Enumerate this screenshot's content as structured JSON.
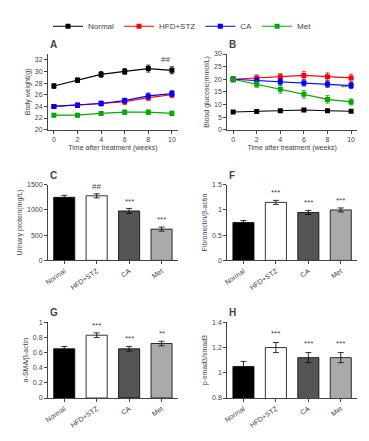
{
  "chart_data": [
    {
      "type": "line",
      "title": "A",
      "xlabel": "Time after treatment (weeks)",
      "ylabel": "Body weight(g)",
      "x": [
        0,
        2,
        4,
        6,
        8,
        10
      ],
      "xlim": [
        -0.5,
        10.5
      ],
      "xticks": [
        0,
        2,
        4,
        6,
        8,
        10
      ],
      "ylim": [
        20,
        33
      ],
      "yticks": [
        20,
        22,
        24,
        26,
        28,
        30,
        32
      ],
      "grid": false,
      "series": [
        {
          "name": "Normal",
          "color": "#000000",
          "marker": "square",
          "values": [
            27.5,
            28.5,
            29.5,
            30.0,
            30.5,
            30.2
          ],
          "errors": [
            0.4,
            0.4,
            0.5,
            0.5,
            0.6,
            0.6
          ]
        },
        {
          "name": "HFD+STZ",
          "color": "#FF0000",
          "marker": "square",
          "values": [
            24.0,
            24.2,
            24.5,
            24.8,
            25.5,
            26.0
          ],
          "errors": [
            0.3,
            0.4,
            0.4,
            0.5,
            0.5,
            0.5
          ]
        },
        {
          "name": "CA",
          "color": "#0000FF",
          "marker": "square",
          "values": [
            24.0,
            24.2,
            24.5,
            25.0,
            25.8,
            26.2
          ],
          "errors": [
            0.3,
            0.3,
            0.4,
            0.4,
            0.5,
            0.5
          ]
        },
        {
          "name": "Met",
          "color": "#00AA00",
          "marker": "square",
          "values": [
            22.5,
            22.5,
            22.8,
            23.0,
            23.0,
            22.8
          ],
          "errors": [
            0.3,
            0.3,
            0.3,
            0.4,
            0.4,
            0.4
          ]
        }
      ],
      "annotations": [
        {
          "text": "##",
          "x": 9.5,
          "y": 31.0
        }
      ]
    },
    {
      "type": "line",
      "title": "B",
      "xlabel": "Time after treatment (weeks)",
      "ylabel": "Blood glucose(mmol/L)",
      "x": [
        0,
        2,
        4,
        6,
        8,
        10
      ],
      "xlim": [
        -0.5,
        10.5
      ],
      "xticks": [
        0,
        2,
        4,
        6,
        8,
        10
      ],
      "ylim": [
        0,
        30
      ],
      "yticks": [
        0,
        5,
        10,
        15,
        20,
        25,
        30
      ],
      "grid": false,
      "legend": "top",
      "series": [
        {
          "name": "Normal",
          "color": "#000000",
          "marker": "square",
          "values": [
            7.0,
            7.2,
            7.5,
            7.8,
            7.5,
            7.3
          ],
          "errors": [
            0.5,
            0.5,
            0.5,
            0.5,
            0.5,
            0.5
          ]
        },
        {
          "name": "HFD+STZ",
          "color": "#FF0000",
          "marker": "square",
          "values": [
            20.0,
            20.5,
            21.0,
            21.5,
            21.0,
            20.5
          ],
          "errors": [
            1.0,
            1.2,
            1.2,
            1.5,
            1.5,
            1.5
          ]
        },
        {
          "name": "CA",
          "color": "#0000FF",
          "marker": "square",
          "values": [
            20.0,
            19.5,
            19.0,
            18.5,
            18.0,
            17.5
          ],
          "errors": [
            1.0,
            1.0,
            1.2,
            1.2,
            1.2,
            1.2
          ]
        },
        {
          "name": "Met",
          "color": "#00AA00",
          "marker": "square",
          "values": [
            20.0,
            18.0,
            16.0,
            14.0,
            12.0,
            11.0
          ],
          "errors": [
            1.0,
            1.2,
            1.5,
            1.5,
            1.5,
            1.2
          ]
        }
      ],
      "annotations": [
        {
          "text": "***",
          "x": 9.5,
          "y": 14.0
        }
      ]
    },
    {
      "type": "bar",
      "title": "C",
      "ylabel": "Urinary protein(mg/L)",
      "categories": [
        "Normal",
        "HFD+STZ",
        "CA",
        "Met"
      ],
      "values": [
        1250,
        1280,
        980,
        620
      ],
      "errors": [
        40,
        40,
        50,
        40
      ],
      "colors": [
        "#000000",
        "#ffffff",
        "#555555",
        "#aaaaaa"
      ],
      "ylim": [
        0,
        1500
      ],
      "yticks": [
        0,
        500,
        1000,
        1500
      ],
      "grid": false,
      "annotations": [
        {
          "text": "##",
          "x": 1,
          "y": 1330
        },
        {
          "text": "***",
          "x": 2,
          "y": 1045
        },
        {
          "text": "***",
          "x": 3,
          "y": 680
        }
      ]
    },
    {
      "type": "bar",
      "title": "F",
      "ylabel": "Fibronectin/β-actin",
      "categories": [
        "Normal",
        "HFD+STZ",
        "CA",
        "Met"
      ],
      "values": [
        0.75,
        1.15,
        0.95,
        1.0
      ],
      "errors": [
        0.04,
        0.04,
        0.04,
        0.04
      ],
      "colors": [
        "#000000",
        "#ffffff",
        "#555555",
        "#aaaaaa"
      ],
      "ylim": [
        0,
        1.5
      ],
      "yticks": [
        0,
        0.5,
        1,
        1.5
      ],
      "grid": false,
      "annotations": [
        {
          "text": "***",
          "x": 1,
          "y": 1.21
        },
        {
          "text": "***",
          "x": 2,
          "y": 1.01
        },
        {
          "text": "***",
          "x": 3,
          "y": 1.06
        }
      ]
    },
    {
      "type": "bar",
      "title": "G",
      "ylabel": "α-SMA/β-actin",
      "categories": [
        "Normal",
        "HFD+STZ",
        "CA",
        "Met"
      ],
      "values": [
        0.65,
        0.83,
        0.65,
        0.72
      ],
      "errors": [
        0.03,
        0.03,
        0.03,
        0.03
      ],
      "colors": [
        "#000000",
        "#ffffff",
        "#555555",
        "#aaaaaa"
      ],
      "ylim": [
        0,
        1.0
      ],
      "yticks": [
        0,
        0.2,
        0.4,
        0.6,
        0.8,
        1
      ],
      "grid": false,
      "annotations": [
        {
          "text": "***",
          "x": 1,
          "y": 0.875
        },
        {
          "text": "***",
          "x": 2,
          "y": 0.695
        },
        {
          "text": "**",
          "x": 3,
          "y": 0.765
        }
      ]
    },
    {
      "type": "bar",
      "title": "H",
      "ylabel": "p-smad3/smad3",
      "categories": [
        "Normal",
        "HFD+STZ",
        "CA",
        "Met"
      ],
      "values": [
        1.05,
        1.2,
        1.12,
        1.12
      ],
      "errors": [
        0.04,
        0.04,
        0.04,
        0.04
      ],
      "colors": [
        "#000000",
        "#ffffff",
        "#555555",
        "#aaaaaa"
      ],
      "ylim": [
        0.8,
        1.4
      ],
      "yticks": [
        0.8,
        1,
        1.2,
        1.4
      ],
      "grid": false,
      "annotations": [
        {
          "text": "***",
          "x": 1,
          "y": 1.26
        },
        {
          "text": "***",
          "x": 2,
          "y": 1.18
        },
        {
          "text": "***",
          "x": 3,
          "y": 1.18
        }
      ]
    }
  ]
}
